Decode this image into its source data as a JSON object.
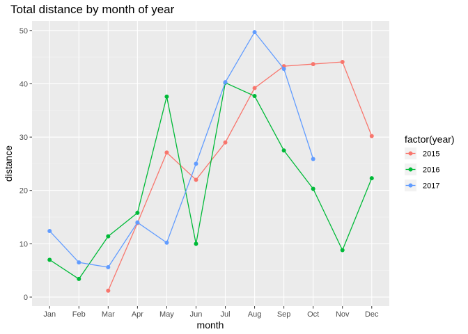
{
  "chart_data": {
    "type": "line",
    "title": "Total distance by month of year",
    "xlabel": "month",
    "ylabel": "distance",
    "categories": [
      "Jan",
      "Feb",
      "Mar",
      "Apr",
      "May",
      "Jun",
      "Jul",
      "Aug",
      "Sep",
      "Oct",
      "Nov",
      "Dec"
    ],
    "ylim": [
      -1.7,
      51.8
    ],
    "yticks": [
      0,
      10,
      20,
      30,
      40,
      50
    ],
    "grid": true,
    "legend": {
      "title": "factor(year)",
      "position": "right"
    },
    "series": [
      {
        "name": "2015",
        "color": "#F8766D",
        "values": [
          null,
          null,
          1.2,
          13.9,
          27.1,
          22.0,
          29.0,
          39.2,
          43.3,
          43.7,
          44.1,
          30.2
        ]
      },
      {
        "name": "2016",
        "color": "#00BA38",
        "values": [
          7.0,
          3.4,
          11.4,
          15.8,
          37.6,
          10.0,
          40.2,
          37.7,
          27.5,
          20.3,
          8.8,
          22.3
        ]
      },
      {
        "name": "2017",
        "color": "#619CFF",
        "values": [
          12.4,
          6.5,
          5.6,
          14.0,
          10.2,
          25.0,
          40.3,
          49.7,
          42.8,
          25.9,
          null,
          null
        ]
      }
    ]
  }
}
